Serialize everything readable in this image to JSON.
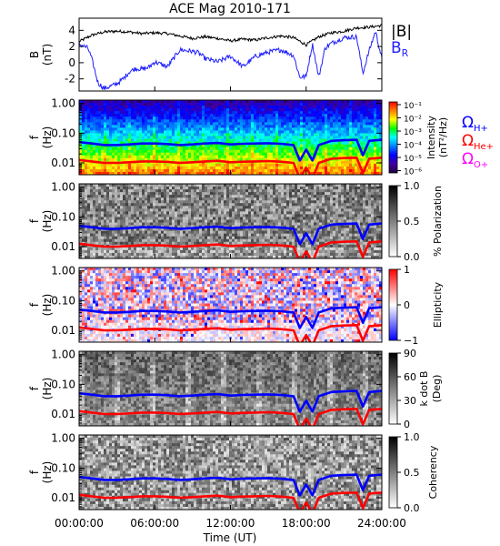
{
  "chart_data": [
    {
      "type": "line",
      "title": "ACE Mag 2010-171",
      "ylabel": "B",
      "yunit": "(nT)",
      "ylim": [
        -3.5,
        5.5
      ],
      "yticks": [
        "4",
        "2",
        "0",
        "-2"
      ],
      "ytick_values": [
        4,
        2,
        0,
        -2
      ],
      "xlim": [
        0,
        24
      ],
      "series": [
        {
          "name": "|B|",
          "color": "#000000",
          "x": [
            0,
            1,
            2,
            3,
            4,
            5,
            6,
            7,
            8,
            9,
            10,
            11,
            12,
            13,
            14,
            15,
            16,
            17,
            18,
            19,
            20,
            21,
            22,
            23,
            24
          ],
          "y": [
            2.6,
            3.4,
            3.8,
            3.9,
            3.8,
            3.6,
            3.7,
            3.6,
            3.3,
            3.0,
            3.2,
            3.0,
            2.7,
            2.9,
            2.8,
            3.1,
            3.3,
            3.1,
            2.2,
            3.2,
            3.7,
            3.9,
            4.3,
            4.4,
            4.6
          ]
        },
        {
          "name": "B",
          "name_sub": "R",
          "color": "#1f1fff",
          "x": [
            0,
            0.7,
            1,
            1.5,
            2,
            2.5,
            3,
            3.5,
            4,
            4.5,
            5,
            5.5,
            6,
            7,
            8,
            9,
            9.5,
            10,
            11,
            12,
            13,
            14,
            15,
            16,
            17,
            17.5,
            18,
            18.5,
            19,
            19.5,
            20,
            21,
            22,
            22.5,
            23,
            23.5,
            24
          ],
          "y": [
            2.3,
            1.8,
            0.5,
            -2.5,
            -3.2,
            -2.9,
            -2.6,
            -2.0,
            -1.1,
            -0.7,
            -0.8,
            -0.6,
            0.1,
            -0.5,
            1.6,
            1.4,
            1.2,
            0.5,
            0.1,
            0.8,
            -0.5,
            0.8,
            1.3,
            1.6,
            0.9,
            -1.8,
            -1.7,
            2.3,
            -1.8,
            1.8,
            2.4,
            3.1,
            3.2,
            -1.3,
            1.5,
            3.9,
            0.5
          ]
        }
      ]
    },
    {
      "type": "heatmap",
      "panel": "Intensity",
      "ylabel": "f",
      "yunit": "(Hz)",
      "yscale": "log",
      "ylim": [
        0.004,
        1.3
      ],
      "yticks": [
        "1.00",
        "0.10",
        "0.01"
      ],
      "colorbar_label": "Intensity",
      "colorbar_unit": "(nT²/Hz)",
      "colorbar_ticks": [
        "10⁻¹",
        "10⁻²",
        "10⁻³",
        "10⁻⁴",
        "10⁻⁵",
        "10⁻⁶"
      ],
      "colorbar_colors": [
        "#ff0000",
        "#ff8000",
        "#ffff00",
        "#00ff00",
        "#00ffff",
        "#0080ff",
        "#0000ff",
        "#4000a0",
        "#200040"
      ]
    },
    {
      "type": "heatmap",
      "panel": "% Polarization",
      "ylabel": "f",
      "yunit": "(Hz)",
      "yscale": "log",
      "ylim": [
        0.004,
        1.3
      ],
      "yticks": [
        "1.00",
        "0.10",
        "0.01"
      ],
      "colorbar_label": "% Polarization",
      "colorbar_ticks": [
        "1.0",
        "0.5",
        "0.0"
      ],
      "colorbar_colors": [
        "#000000",
        "#ffffff"
      ]
    },
    {
      "type": "heatmap",
      "panel": "Ellipticity",
      "ylabel": "f",
      "yunit": "(Hz)",
      "yscale": "log",
      "ylim": [
        0.004,
        1.3
      ],
      "yticks": [
        "1.00",
        "0.10",
        "0.01"
      ],
      "colorbar_label": "Ellipticity",
      "colorbar_ticks": [
        "1",
        "0",
        "−1"
      ],
      "colorbar_colors": [
        "#ff0000",
        "#ffffff",
        "#0000ff"
      ]
    },
    {
      "type": "heatmap",
      "panel": "k dot B",
      "ylabel": "f",
      "yunit": "(Hz)",
      "yscale": "log",
      "ylim": [
        0.004,
        1.3
      ],
      "yticks": [
        "1.00",
        "0.10",
        "0.01"
      ],
      "colorbar_label": "k dot B",
      "colorbar_unit": "(Deg)",
      "colorbar_ticks": [
        "90",
        "60",
        "30",
        "0"
      ],
      "colorbar_colors": [
        "#000000",
        "#ffffff"
      ]
    },
    {
      "type": "heatmap",
      "panel": "Coherency",
      "ylabel": "f",
      "yunit": "(Hz)",
      "yscale": "log",
      "ylim": [
        0.004,
        1.3
      ],
      "yticks": [
        "1.00",
        "0.10",
        "0.01"
      ],
      "colorbar_label": "Coherency",
      "colorbar_ticks": [
        "1.0",
        "0.5",
        "0.0"
      ],
      "colorbar_colors": [
        "#000000",
        "#ffffff"
      ],
      "xlabel": "Time (UT)",
      "xticks": [
        "00:00:00",
        "06:00:00",
        "12:00:00",
        "18:00:00",
        "24:00:00"
      ],
      "xtick_values": [
        0,
        6,
        12,
        18,
        24
      ]
    }
  ],
  "gyrofrequencies": {
    "x": [
      0,
      1,
      2,
      3,
      4,
      5,
      6,
      7,
      8,
      9,
      10,
      11,
      12,
      13,
      14,
      15,
      16,
      17,
      17.5,
      18,
      18.5,
      19,
      20,
      21,
      22,
      22.5,
      23,
      24
    ],
    "H+": {
      "label": "Ω",
      "sub": "H+",
      "color": "#0000ff",
      "f": [
        0.05,
        0.045,
        0.04,
        0.04,
        0.042,
        0.045,
        0.045,
        0.043,
        0.04,
        0.042,
        0.045,
        0.047,
        0.042,
        0.044,
        0.045,
        0.046,
        0.044,
        0.04,
        0.012,
        0.028,
        0.012,
        0.04,
        0.055,
        0.058,
        0.06,
        0.018,
        0.055,
        0.06
      ]
    },
    "He+": {
      "label": "Ω",
      "sub": "He+",
      "color": "#ff0000",
      "f": [
        0.0125,
        0.0112,
        0.01,
        0.01,
        0.0105,
        0.0112,
        0.0112,
        0.0108,
        0.01,
        0.0105,
        0.0112,
        0.0118,
        0.0105,
        0.011,
        0.0112,
        0.0115,
        0.011,
        0.01,
        0.003,
        0.007,
        0.003,
        0.01,
        0.0138,
        0.0145,
        0.015,
        0.0045,
        0.0138,
        0.015
      ]
    },
    "O+": {
      "label": "Ω",
      "sub": "O+",
      "color": "#ff00ff",
      "f": [
        0.0031,
        0.0028,
        0.0025,
        0.0025,
        0.0026,
        0.0028,
        0.0028,
        0.0027,
        0.0025,
        0.0026,
        0.0028,
        0.003,
        0.0026,
        0.0028,
        0.0028,
        0.0029,
        0.0028,
        0.0025,
        0.0012,
        0.0018,
        0.0012,
        0.0025,
        0.0035,
        0.0036,
        0.0038,
        0.0015,
        0.0035,
        0.0038
      ]
    }
  }
}
